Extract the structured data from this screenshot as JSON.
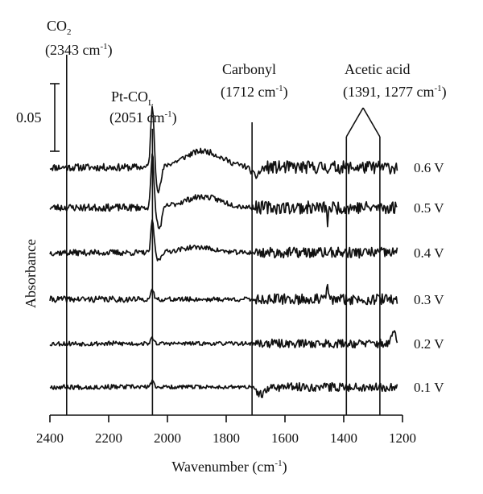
{
  "chart_data": {
    "type": "line",
    "title": "",
    "xlabel": "Wavenumber (cm",
    "xlabel_sup": "-1",
    "xlabel_tail": ")",
    "ylabel": "Absorbance",
    "xlim": [
      2400,
      1200
    ],
    "x_reversed": true,
    "x_ticks": [
      "2400",
      "2200",
      "2000",
      "1800",
      "1600",
      "1400",
      "1200"
    ],
    "grid": false,
    "scale_bar": {
      "label": "0.05",
      "value": 0.05
    },
    "annotations": [
      {
        "id": "co2",
        "line1": "CO",
        "line1_sub": "2",
        "line2": "(2343 cm",
        "line2_sup": "-1",
        "line2_tail": ")",
        "x": [
          2343
        ]
      },
      {
        "id": "ptco",
        "line1": "Pt-CO",
        "line1_sub": "L",
        "line2": "(2051 cm",
        "line2_sup": "-1",
        "line2_tail": ")",
        "x": [
          2051
        ]
      },
      {
        "id": "carbonyl",
        "line1": "Carbonyl",
        "line1_sub": "",
        "line2": "(1712 cm",
        "line2_sup": "-1",
        "line2_tail": ")",
        "x": [
          1712
        ]
      },
      {
        "id": "acetic",
        "line1": "Acetic acid",
        "line1_sub": "",
        "line2": "(1391, 1277 cm",
        "line2_sup": "-1",
        "line2_tail": ")",
        "x": [
          1391,
          1277
        ]
      }
    ],
    "series": [
      {
        "name": "0.6 V",
        "features": [
          {
            "x": 2051,
            "h": 0.045,
            "w": 8
          },
          {
            "x": 2030,
            "h": -0.018,
            "w": 12
          },
          {
            "x": 1880,
            "h": 0.012,
            "w": 90
          },
          {
            "x": 1700,
            "h": -0.006,
            "w": 20
          }
        ],
        "noise": 0.006,
        "seed": 11
      },
      {
        "name": "0.5 V",
        "features": [
          {
            "x": 2051,
            "h": 0.04,
            "w": 7
          },
          {
            "x": 2028,
            "h": -0.016,
            "w": 12
          },
          {
            "x": 1880,
            "h": 0.008,
            "w": 90
          },
          {
            "x": 1455,
            "h": -0.01,
            "w": 4
          }
        ],
        "noise": 0.006,
        "seed": 23
      },
      {
        "name": "0.4 V",
        "features": [
          {
            "x": 2051,
            "h": 0.024,
            "w": 7
          },
          {
            "x": 2030,
            "h": -0.006,
            "w": 10
          },
          {
            "x": 1900,
            "h": 0.004,
            "w": 80
          }
        ],
        "noise": 0.005,
        "seed": 37
      },
      {
        "name": "0.3 V",
        "features": [
          {
            "x": 2051,
            "h": 0.006,
            "w": 8
          },
          {
            "x": 1455,
            "h": 0.01,
            "w": 4
          }
        ],
        "noise": 0.005,
        "seed": 41
      },
      {
        "name": "0.2 V",
        "features": [
          {
            "x": 2051,
            "h": 0.004,
            "w": 8
          },
          {
            "x": 1230,
            "h": 0.01,
            "w": 8
          }
        ],
        "noise": 0.004,
        "seed": 53
      },
      {
        "name": "0.1 V",
        "features": [
          {
            "x": 2051,
            "h": 0.004,
            "w": 8
          },
          {
            "x": 1680,
            "h": -0.006,
            "w": 20
          }
        ],
        "noise": 0.004,
        "seed": 67
      }
    ]
  }
}
